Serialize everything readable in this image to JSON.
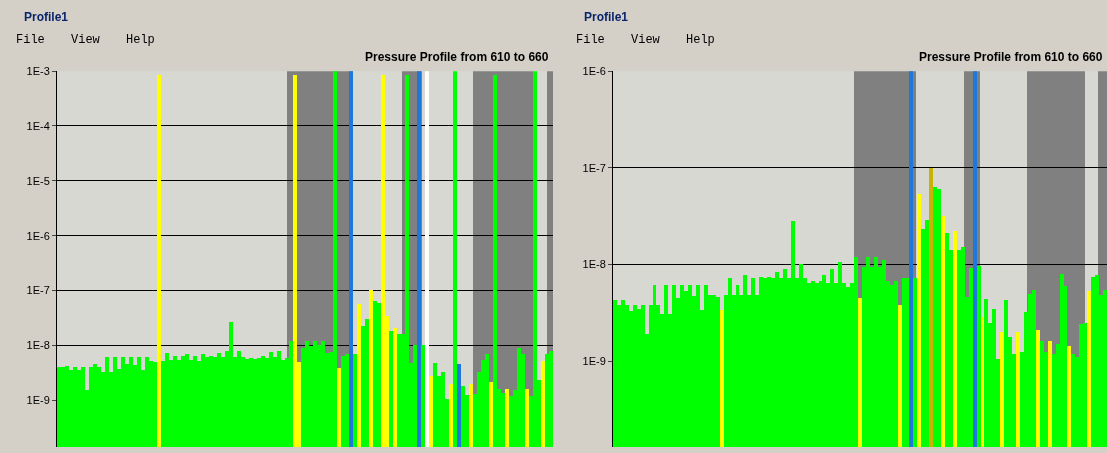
{
  "chart_data": [
    {
      "type": "bar",
      "title": "Pressure Profile from 610 to 660",
      "annotations": [
        "Profile1",
        "File",
        "View",
        "Help"
      ],
      "log": true,
      "grid": "y",
      "tick_labels": "y",
      "ylim": [
        1.4e-10,
        0.001
      ],
      "yticks": [
        {
          "value": 0.001,
          "label": "1E-3"
        },
        {
          "value": 0.0001,
          "label": "1E-4"
        },
        {
          "value": 1e-05,
          "label": "1E-5"
        },
        {
          "value": 1e-06,
          "label": "1E-6"
        },
        {
          "value": 1e-07,
          "label": "1E-7"
        },
        {
          "value": 1e-08,
          "label": "1E-8"
        },
        {
          "value": 1e-09,
          "label": "1E-9"
        }
      ],
      "categories": [
        null,
        null,
        null,
        null,
        null,
        null,
        null,
        null,
        null,
        null,
        null,
        null,
        null,
        null,
        null,
        null,
        null,
        null,
        null,
        null,
        null,
        null,
        null,
        null,
        null,
        null,
        null,
        null,
        null,
        null,
        null,
        null,
        null,
        null,
        null,
        null,
        null,
        null,
        null,
        null,
        null,
        null,
        null,
        null,
        null,
        null,
        null,
        null,
        null,
        null,
        null,
        null,
        null,
        null,
        null,
        null,
        null,
        null,
        null,
        null,
        null,
        null,
        null,
        null,
        null,
        null,
        null,
        null,
        null,
        null,
        null,
        null,
        null,
        null,
        null,
        null,
        null,
        null,
        null,
        null,
        null,
        null,
        null,
        null,
        null,
        null,
        null,
        null,
        null,
        null,
        null,
        null,
        null,
        null,
        null,
        null,
        null,
        null,
        null,
        null,
        null,
        null,
        null,
        null,
        null,
        null,
        null,
        null,
        null,
        null,
        null,
        null,
        null,
        null,
        null,
        null,
        null,
        null,
        null,
        null,
        null,
        null,
        null,
        null
      ],
      "values": [
        4e-09,
        4e-09,
        4.2e-09,
        3.5e-09,
        4e-09,
        3.6e-09,
        4e-09,
        1.5e-09,
        4e-09,
        4.6e-09,
        4e-09,
        3.2e-09,
        6.2e-09,
        3.2e-09,
        6.2e-09,
        3.7e-09,
        6.2e-09,
        4.6e-09,
        6.2e-09,
        4.3e-09,
        6.2e-09,
        3.6e-09,
        6.2e-09,
        5.2e-09,
        4.9e-09,
        0.00085,
        5.2e-09,
        7.2e-09,
        5.5e-09,
        6.5e-09,
        5.5e-09,
        6.5e-09,
        7e-09,
        5.5e-09,
        6.5e-09,
        5.2e-09,
        6.8e-09,
        6.2e-09,
        6.5e-09,
        6.2e-09,
        7.2e-09,
        6.2e-09,
        8e-09,
        2.7e-08,
        6.2e-09,
        8e-09,
        6.2e-09,
        5.6e-09,
        5.8e-09,
        5.6e-09,
        5.8e-09,
        6.5e-09,
        5.8e-09,
        7.5e-09,
        6e-09,
        8e-09,
        5.4e-09,
        5.8e-09,
        1.2e-08,
        0.00085,
        4.9e-09,
        9e-09,
        1.2e-08,
        9.5e-09,
        1.2e-08,
        1e-08,
        1.2e-08,
        7.2e-09,
        7.5e-09,
        0.001,
        3.8e-09,
        6.5e-09,
        7e-09,
        0.001,
        7e-09,
        5.6e-08,
        2.2e-08,
        3e-08,
        1e-07,
        6.5e-08,
        6e-08,
        0.00085,
        3.4e-08,
        1.8e-08,
        2.1e-08,
        1.6e-08,
        1.6e-08,
        0.00085,
        4.7e-09,
        1e-08,
        0.001,
        1e-08,
        0.001,
        2.8e-09,
        4.7e-09,
        2.7e-09,
        3.2e-09,
        1.05e-09,
        2e-09,
        0.001,
        4.5e-09,
        1.8e-09,
        1.25e-09,
        2e-09,
        1.3e-09,
        3.2e-09,
        5.4e-09,
        6.9e-09,
        2.1e-09,
        0.00085,
        1.6e-09,
        1.35e-09,
        1.6e-09,
        1.2e-09,
        1.5e-09,
        8.9e-09,
        6.8e-09,
        1.6e-09,
        1.2e-09,
        0.001,
        2.3e-09,
        5.2e-09,
        6.9e-09,
        7.9e-09
      ],
      "colors": [
        "#00ff00",
        "#00ff00",
        "#00ff00",
        "#00ff00",
        "#00ff00",
        "#00ff00",
        "#00ff00",
        "#00ff00",
        "#00ff00",
        "#00ff00",
        "#00ff00",
        "#00ff00",
        "#00ff00",
        "#00ff00",
        "#00ff00",
        "#00ff00",
        "#00ff00",
        "#00ff00",
        "#00ff00",
        "#00ff00",
        "#00ff00",
        "#00ff00",
        "#00ff00",
        "#00ff00",
        "#00ff00",
        "#ffff00",
        "#00ff00",
        "#00ff00",
        "#00ff00",
        "#00ff00",
        "#00ff00",
        "#00ff00",
        "#00ff00",
        "#00ff00",
        "#00ff00",
        "#00ff00",
        "#00ff00",
        "#00ff00",
        "#00ff00",
        "#00ff00",
        "#00ff00",
        "#00ff00",
        "#00ff00",
        "#00ff00",
        "#00ff00",
        "#00ff00",
        "#00ff00",
        "#00ff00",
        "#00ff00",
        "#00ff00",
        "#00ff00",
        "#00ff00",
        "#00ff00",
        "#00ff00",
        "#00ff00",
        "#00ff00",
        "#00ff00",
        "#00ff00",
        "#00ff00",
        "#ffff00",
        "#ffff00",
        "#00ff00",
        "#00ff00",
        "#00ff00",
        "#00ff00",
        "#00ff00",
        "#00ff00",
        "#00ff00",
        "#00ff00",
        "#00ff00",
        "#ffff00",
        "#00ff00",
        "#00ff00",
        "#1e78dc",
        "#00ff00",
        "#ffff00",
        "#00ff00",
        "#00ff00",
        "#ffff00",
        "#00ff00",
        "#00ff00",
        "#ffff00",
        "#ffff00",
        "#00ff00",
        "#ffff00",
        "#00ff00",
        "#00ff00",
        "#00ff00",
        "#00ff00",
        "#00ff00",
        "#1e78dc",
        "#00ff00",
        "#ffffff",
        "#ffff00",
        "#00ff00",
        "#00ff00",
        "#00ff00",
        "#00ff00",
        "#ffff00",
        "#00ff00",
        "#1e78dc",
        "#00ff00",
        "#00ff00",
        "#ffff00",
        "#00ff00",
        "#00ff00",
        "#00ff00",
        "#00ff00",
        "#ffff00",
        "#00ff00",
        "#00ff00",
        "#00ff00",
        "#ffff00",
        "#00ff00",
        "#00ff00",
        "#00ff00",
        "#00ff00",
        "#ffff00",
        "#00ff00",
        "#00ff00",
        "#00ff00",
        "#ffff00",
        "#00ff00",
        "#00ff00"
      ]
    },
    {
      "type": "bar",
      "title": "Pressure Profile from 610 to 660",
      "annotations": [
        "Profile1",
        "File",
        "View",
        "Help"
      ],
      "log": true,
      "grid": "y",
      "tick_labels": "y",
      "ylim": [
        1.3e-10,
        1e-06
      ],
      "yticks": [
        {
          "value": 1e-06,
          "label": "1E-6"
        },
        {
          "value": 1e-07,
          "label": "1E-7"
        },
        {
          "value": 1e-08,
          "label": "1E-8"
        },
        {
          "value": 1e-09,
          "label": "1E-9"
        }
      ],
      "categories": [
        null,
        null,
        null,
        null,
        null,
        null,
        null,
        null,
        null,
        null,
        null,
        null,
        null,
        null,
        null,
        null,
        null,
        null,
        null,
        null,
        null,
        null,
        null,
        null,
        null,
        null,
        null,
        null,
        null,
        null,
        null,
        null,
        null,
        null,
        null,
        null,
        null,
        null,
        null,
        null,
        null,
        null,
        null,
        null,
        null,
        null,
        null,
        null,
        null,
        null,
        null,
        null,
        null,
        null,
        null,
        null,
        null,
        null,
        null,
        null,
        null,
        null,
        null,
        null,
        null,
        null,
        null,
        null,
        null,
        null,
        null,
        null,
        null,
        null,
        null,
        null,
        null,
        null,
        null,
        null,
        null,
        null,
        null,
        null,
        null,
        null,
        null,
        null,
        null,
        null,
        null,
        null,
        null,
        null,
        null,
        null,
        null,
        null,
        null,
        null,
        null,
        null,
        null,
        null,
        null,
        null,
        null,
        null,
        null,
        null,
        null,
        null,
        null,
        null,
        null,
        null,
        null,
        null,
        null,
        null,
        null,
        null,
        null,
        null,
        null
      ],
      "values": [
        4.3e-09,
        3.8e-09,
        4.3e-09,
        3.8e-09,
        3.3e-09,
        3.8e-09,
        3.5e-09,
        3.8e-09,
        1.9e-09,
        3.8e-09,
        6.2e-09,
        3.8e-09,
        3.1e-09,
        6.2e-09,
        3.1e-09,
        6.2e-09,
        4.5e-09,
        6.2e-09,
        5.3e-09,
        6.2e-09,
        4.7e-09,
        6.2e-09,
        3.4e-09,
        6.2e-09,
        4.8e-09,
        4.8e-09,
        4.6e-09,
        3.4e-09,
        4.8e-09,
        7.3e-09,
        4.8e-09,
        6.2e-09,
        4.8e-09,
        7.8e-09,
        4.8e-09,
        7.3e-09,
        4.8e-09,
        7.5e-09,
        7.3e-09,
        7.5e-09,
        7.3e-09,
        8.3e-09,
        7.3e-09,
        9e-09,
        7.3e-09,
        2.8e-08,
        7.3e-09,
        1e-08,
        7.3e-09,
        6.5e-09,
        6.8e-09,
        6.5e-09,
        6.8e-09,
        7.8e-09,
        6.5e-09,
        9e-09,
        6.5e-09,
        1.05e-08,
        6.5e-09,
        5.8e-09,
        6.5e-09,
        1.2e-08,
        4.5e-09,
        9.5e-09,
        1.2e-08,
        9.5e-09,
        1.2e-08,
        9.5e-09,
        1.1e-08,
        6.8e-09,
        6.2e-09,
        6.8e-09,
        3.8e-09,
        7.3e-09,
        7.3e-09,
        1e-06,
        7.3e-09,
        5.4e-08,
        2.3e-08,
        2.9e-08,
        1e-07,
        6.4e-08,
        6e-08,
        3.2e-08,
        2.1e-08,
        1.4e-08,
        2.2e-08,
        1.4e-08,
        1.5e-08,
        4.6e-09,
        9.1e-09,
        1e-06,
        9.7e-09,
        2.9e-09,
        4.4e-09,
        2.5e-09,
        3.5e-09,
        1.05e-09,
        2e-09,
        4.3e-09,
        1.8e-09,
        1.2e-09,
        2e-09,
        1.25e-09,
        3.2e-09,
        4.9e-09,
        5.5e-09,
        2.1e-09,
        1.6e-09,
        1.25e-09,
        1.6e-09,
        1.2e-09,
        1.5e-09,
        7.9e-09,
        6e-09,
        1.45e-09,
        1.2e-09,
        1.1e-09,
        2.4e-09,
        2.5e-09,
        5.3e-09,
        7.5e-09,
        7.7e-09,
        4.8e-09,
        5.5e-09
      ],
      "colors": [
        "#00ff00",
        "#00ff00",
        "#00ff00",
        "#00ff00",
        "#00ff00",
        "#00ff00",
        "#00ff00",
        "#00ff00",
        "#00ff00",
        "#00ff00",
        "#00ff00",
        "#00ff00",
        "#00ff00",
        "#00ff00",
        "#00ff00",
        "#00ff00",
        "#00ff00",
        "#00ff00",
        "#00ff00",
        "#00ff00",
        "#00ff00",
        "#00ff00",
        "#00ff00",
        "#00ff00",
        "#00ff00",
        "#00ff00",
        "#00ff00",
        "#ffff00",
        "#00ff00",
        "#00ff00",
        "#00ff00",
        "#00ff00",
        "#00ff00",
        "#00ff00",
        "#00ff00",
        "#00ff00",
        "#00ff00",
        "#00ff00",
        "#00ff00",
        "#00ff00",
        "#00ff00",
        "#00ff00",
        "#00ff00",
        "#00ff00",
        "#00ff00",
        "#00ff00",
        "#00ff00",
        "#00ff00",
        "#00ff00",
        "#00ff00",
        "#00ff00",
        "#00ff00",
        "#00ff00",
        "#00ff00",
        "#00ff00",
        "#00ff00",
        "#00ff00",
        "#00ff00",
        "#00ff00",
        "#00ff00",
        "#00ff00",
        "#00ff00",
        "#ffff00",
        "#00ff00",
        "#00ff00",
        "#00ff00",
        "#00ff00",
        "#00ff00",
        "#00ff00",
        "#00ff00",
        "#00ff00",
        "#00ff00",
        "#ffff00",
        "#00ff00",
        "#00ff00",
        "#1e78dc",
        "#00ff00",
        "#ffff00",
        "#00ff00",
        "#00ff00",
        "#c8b400",
        "#00ff00",
        "#00ff00",
        "#ffff00",
        "#00ff00",
        "#00ff00",
        "#ffff00",
        "#00ff00",
        "#00ff00",
        "#00ff00",
        "#00ff00",
        "#1e78dc",
        "#00ff00",
        "#ffff00",
        "#00ff00",
        "#00ff00",
        "#00ff00",
        "#00ff00",
        "#ffff00",
        "#00ff00",
        "#00ff00",
        "#00ff00",
        "#ffff00",
        "#00ff00",
        "#00ff00",
        "#00ff00",
        "#00ff00",
        "#ffff00",
        "#00ff00",
        "#00ff00",
        "#ffff00",
        "#00ff00",
        "#00ff00",
        "#00ff00",
        "#00ff00",
        "#ffff00",
        "#00ff00",
        "#00ff00",
        "#00ff00",
        "#00ff00",
        "#ffff00",
        "#00ff00",
        "#00ff00",
        "#00ff00",
        "#00ff00"
      ]
    }
  ]
}
